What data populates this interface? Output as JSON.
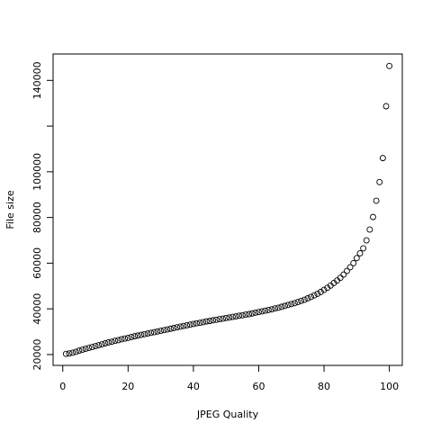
{
  "chart_data": {
    "type": "scatter",
    "xlabel": "JPEG Quality",
    "ylabel": "File size",
    "x": [
      1,
      2,
      3,
      4,
      5,
      6,
      7,
      8,
      9,
      10,
      11,
      12,
      13,
      14,
      15,
      16,
      17,
      18,
      19,
      20,
      21,
      22,
      23,
      24,
      25,
      26,
      27,
      28,
      29,
      30,
      31,
      32,
      33,
      34,
      35,
      36,
      37,
      38,
      39,
      40,
      41,
      42,
      43,
      44,
      45,
      46,
      47,
      48,
      49,
      50,
      51,
      52,
      53,
      54,
      55,
      56,
      57,
      58,
      59,
      60,
      61,
      62,
      63,
      64,
      65,
      66,
      67,
      68,
      69,
      70,
      71,
      72,
      73,
      74,
      75,
      76,
      77,
      78,
      79,
      80,
      81,
      82,
      83,
      84,
      85,
      86,
      87,
      88,
      89,
      90,
      91,
      92,
      93,
      94,
      95,
      96,
      97,
      98,
      99,
      100
    ],
    "values": [
      20300,
      20500,
      20800,
      21200,
      21700,
      22100,
      22500,
      22900,
      23300,
      23700,
      24100,
      24500,
      24900,
      25300,
      25600,
      26000,
      26300,
      26700,
      27000,
      27300,
      27700,
      28000,
      28300,
      28600,
      28900,
      29200,
      29500,
      29800,
      30100,
      30400,
      30700,
      31000,
      31300,
      31600,
      31900,
      32200,
      32500,
      32800,
      33100,
      33400,
      33700,
      33900,
      34200,
      34500,
      34700,
      35000,
      35200,
      35500,
      35700,
      36000,
      36200,
      36500,
      36700,
      37000,
      37200,
      37500,
      37700,
      38000,
      38300,
      38600,
      38900,
      39200,
      39500,
      39800,
      40200,
      40500,
      40900,
      41300,
      41700,
      42100,
      42500,
      43000,
      43500,
      44000,
      44600,
      45200,
      45900,
      46600,
      47400,
      48300,
      49200,
      50200,
      51300,
      52400,
      53600,
      55000,
      56600,
      58200,
      60000,
      62200,
      64300,
      66500,
      70000,
      74700,
      80200,
      87300,
      95500,
      106000,
      128700,
      146300
    ],
    "color": "#000000",
    "xlim": [
      -2.96,
      103.96
    ],
    "xticks": [
      0,
      20,
      40,
      60,
      80,
      100
    ],
    "ylim": [
      15250,
      151550
    ],
    "yticks": [
      20000,
      40000,
      60000,
      80000,
      100000,
      {
        "value": 120000,
        "label": null
      },
      140000
    ]
  }
}
